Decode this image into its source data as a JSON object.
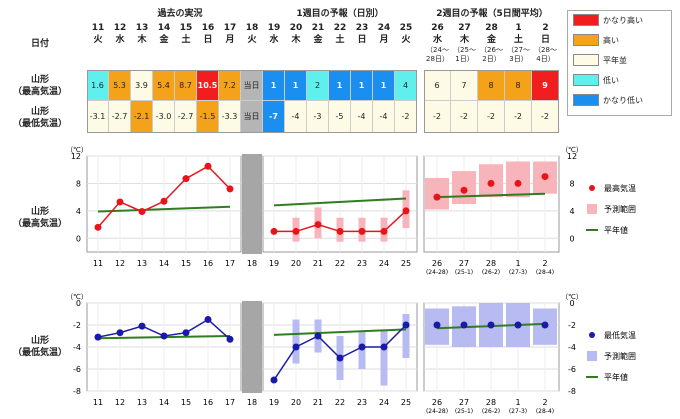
{
  "header": {
    "past": "過去の実況",
    "week1": "1週目の予報（日別）",
    "week2": "2週目の予報（5日間平均）",
    "date_label": "日付",
    "max_label_1": "山形",
    "max_label_2": "（最高気温）",
    "min_label_1": "山形",
    "min_label_2": "（最低気温）"
  },
  "dates": [
    {
      "d": "11",
      "w": "火"
    },
    {
      "d": "12",
      "w": "水"
    },
    {
      "d": "13",
      "w": "木"
    },
    {
      "d": "14",
      "w": "金"
    },
    {
      "d": "15",
      "w": "土"
    },
    {
      "d": "16",
      "w": "日"
    },
    {
      "d": "17",
      "w": "月"
    },
    {
      "d": "18",
      "w": "火"
    },
    {
      "d": "19",
      "w": "水"
    },
    {
      "d": "20",
      "w": "木"
    },
    {
      "d": "21",
      "w": "金"
    },
    {
      "d": "22",
      "w": "土"
    },
    {
      "d": "23",
      "w": "日"
    },
    {
      "d": "24",
      "w": "月"
    },
    {
      "d": "25",
      "w": "火"
    }
  ],
  "periods": [
    {
      "d": "26",
      "w": "水",
      "r1": "（24～",
      "r2": "28日）"
    },
    {
      "d": "27",
      "w": "木",
      "r1": "（25～",
      "r2": "1日）"
    },
    {
      "d": "28",
      "w": "金",
      "r1": "（26～",
      "r2": "2日）"
    },
    {
      "d": "1",
      "w": "土",
      "r1": "（27～",
      "r2": "3日）"
    },
    {
      "d": "2",
      "w": "日",
      "r1": "（28～",
      "r2": "4日）"
    }
  ],
  "max_cells": [
    {
      "v": "1.6",
      "c": "#5ff0ee"
    },
    {
      "v": "5.3",
      "c": "#f5a21b"
    },
    {
      "v": "3.9",
      "c": "#fdfbe6"
    },
    {
      "v": "5.4",
      "c": "#f5a21b"
    },
    {
      "v": "8.7",
      "c": "#f5a21b"
    },
    {
      "v": "10.5",
      "c": "#f01e1e"
    },
    {
      "v": "7.2",
      "c": "#f5a21b"
    },
    {
      "v": "当日",
      "c": "#b5b5b5"
    },
    {
      "v": "1",
      "c": "#1a8ff0"
    },
    {
      "v": "1",
      "c": "#1a8ff0"
    },
    {
      "v": "2",
      "c": "#5ff0ee"
    },
    {
      "v": "1",
      "c": "#1a8ff0"
    },
    {
      "v": "1",
      "c": "#1a8ff0"
    },
    {
      "v": "1",
      "c": "#1a8ff0"
    },
    {
      "v": "4",
      "c": "#5ff0ee"
    }
  ],
  "max_cells_w2": [
    {
      "v": "6",
      "c": "#fdfbe6"
    },
    {
      "v": "7",
      "c": "#fdfbe6"
    },
    {
      "v": "8",
      "c": "#f5a21b"
    },
    {
      "v": "8",
      "c": "#f5a21b"
    },
    {
      "v": "9",
      "c": "#f01e1e"
    }
  ],
  "min_cells": [
    {
      "v": "-3.1",
      "c": "#fdfbe6"
    },
    {
      "v": "-2.7",
      "c": "#fdfbe6"
    },
    {
      "v": "-2.1",
      "c": "#f5a21b"
    },
    {
      "v": "-3.0",
      "c": "#fdfbe6"
    },
    {
      "v": "-2.7",
      "c": "#fdfbe6"
    },
    {
      "v": "-1.5",
      "c": "#f5a21b"
    },
    {
      "v": "-3.3",
      "c": "#fdfbe6"
    },
    {
      "v": "当日",
      "c": "#b5b5b5"
    },
    {
      "v": "-7",
      "c": "#1a8ff0"
    },
    {
      "v": "-4",
      "c": "#fdfbe6"
    },
    {
      "v": "-3",
      "c": "#fdfbe6"
    },
    {
      "v": "-5",
      "c": "#fdfbe6"
    },
    {
      "v": "-4",
      "c": "#fdfbe6"
    },
    {
      "v": "-4",
      "c": "#fdfbe6"
    },
    {
      "v": "-2",
      "c": "#fdfbe6"
    }
  ],
  "min_cells_w2": [
    {
      "v": "-2",
      "c": "#fdfbe6"
    },
    {
      "v": "-2",
      "c": "#fdfbe6"
    },
    {
      "v": "-2",
      "c": "#fdfbe6"
    },
    {
      "v": "-2",
      "c": "#fdfbe6"
    },
    {
      "v": "-2",
      "c": "#fdfbe6"
    }
  ],
  "class_legend": [
    {
      "label": "かなり高い",
      "color": "#f01e1e"
    },
    {
      "label": "高い",
      "color": "#f5a21b"
    },
    {
      "label": "平年並",
      "color": "#fdfbe6"
    },
    {
      "label": "低い",
      "color": "#5ff0ee"
    },
    {
      "label": "かなり低い",
      "color": "#1a8ff0"
    }
  ],
  "unit": "（℃）",
  "chart_data": [
    {
      "type": "line",
      "title": "山形（最高気温）",
      "x_daily": [
        "11",
        "12",
        "13",
        "14",
        "15",
        "16",
        "17",
        "18",
        "19",
        "20",
        "21",
        "22",
        "23",
        "24",
        "25"
      ],
      "x_weekly": [
        "26",
        "27",
        "28",
        "1",
        "2"
      ],
      "x_weekly_sub": [
        "(24-28)",
        "(25-1)",
        "(26-2)",
        "(27-3)",
        "(28-4)"
      ],
      "ylim": [
        -2,
        12
      ],
      "yticks": [
        0,
        4,
        8,
        12
      ],
      "past": {
        "x": [
          "11",
          "12",
          "13",
          "14",
          "15",
          "16",
          "17"
        ],
        "values": [
          1.6,
          5.3,
          3.9,
          5.4,
          8.7,
          10.5,
          7.2
        ]
      },
      "normal_past": {
        "x": [
          "11",
          "17"
        ],
        "values": [
          3.9,
          4.6
        ]
      },
      "forecast": {
        "x": [
          "19",
          "20",
          "21",
          "22",
          "23",
          "24",
          "25"
        ],
        "values": [
          1,
          1,
          2,
          1,
          1,
          1,
          4
        ]
      },
      "forecast_range": [
        [
          null,
          null
        ],
        [
          -0.5,
          3
        ],
        [
          0,
          4.5
        ],
        [
          -0.5,
          3
        ],
        [
          -0.5,
          3
        ],
        [
          -0.5,
          3
        ],
        [
          1.5,
          7
        ]
      ],
      "normal_forecast": {
        "x": [
          "19",
          "25"
        ],
        "values": [
          4.8,
          5.8
        ]
      },
      "weekly": {
        "values": [
          6,
          7,
          8,
          8,
          9
        ]
      },
      "weekly_range": [
        [
          4.2,
          8.8
        ],
        [
          5,
          9.8
        ],
        [
          6,
          10.8
        ],
        [
          6,
          11.2
        ],
        [
          6.5,
          11.2
        ]
      ],
      "normal_weekly": {
        "values": [
          6.0,
          6.5
        ]
      },
      "legend": [
        "最高気温",
        "予測範囲",
        "平年値"
      ],
      "colors": {
        "line": "#e8141a",
        "range": "#f7b5bb",
        "normal": "#2f7d1f"
      }
    },
    {
      "type": "line",
      "title": "山形（最低気温）",
      "x_daily": [
        "11",
        "12",
        "13",
        "14",
        "15",
        "16",
        "17",
        "18",
        "19",
        "20",
        "21",
        "22",
        "23",
        "24",
        "25"
      ],
      "x_weekly": [
        "26",
        "27",
        "28",
        "1",
        "2"
      ],
      "x_weekly_sub": [
        "(24-28)",
        "(25-1)",
        "(26-2)",
        "(27-3)",
        "(28-4)"
      ],
      "ylim": [
        -8,
        0
      ],
      "yticks": [
        -8,
        -6,
        -4,
        -2,
        0
      ],
      "past": {
        "x": [
          "11",
          "12",
          "13",
          "14",
          "15",
          "16",
          "17"
        ],
        "values": [
          -3.1,
          -2.7,
          -2.1,
          -3.0,
          -2.7,
          -1.5,
          -3.3
        ]
      },
      "normal_past": {
        "x": [
          "11",
          "17"
        ],
        "values": [
          -3.2,
          -3.0
        ]
      },
      "forecast": {
        "x": [
          "19",
          "20",
          "21",
          "22",
          "23",
          "24",
          "25"
        ],
        "values": [
          -7,
          -4,
          -3,
          -5,
          -4,
          -4,
          -2
        ]
      },
      "forecast_range": [
        [
          null,
          null
        ],
        [
          -5.5,
          -1.5
        ],
        [
          -4.5,
          -1.5
        ],
        [
          -7,
          -3
        ],
        [
          -6,
          -2.5
        ],
        [
          -7.5,
          -2.5
        ],
        [
          -5,
          -1
        ]
      ],
      "normal_forecast": {
        "x": [
          "19",
          "25"
        ],
        "values": [
          -2.9,
          -2.4
        ]
      },
      "weekly": {
        "values": [
          -2,
          -2,
          -2,
          -2,
          -2
        ]
      },
      "weekly_range": [
        [
          -3.8,
          -0.5
        ],
        [
          -4,
          -0.3
        ],
        [
          -4,
          0
        ],
        [
          -4,
          0
        ],
        [
          -3.8,
          -0.5
        ]
      ],
      "normal_weekly": {
        "values": [
          -2.3,
          -1.9
        ]
      },
      "legend": [
        "最低気温",
        "予測範囲",
        "平年値"
      ],
      "colors": {
        "line": "#1a1aa8",
        "range": "#b8bbf2",
        "normal": "#2f7d1f"
      }
    }
  ]
}
